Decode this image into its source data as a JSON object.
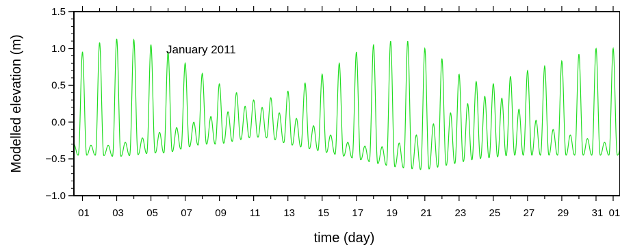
{
  "chart_data": {
    "type": "line",
    "ylabel": "Modelled elevation (m)",
    "xlabel": "time (day)",
    "annotation": "January 2011",
    "ylim": [
      -1.0,
      1.5
    ],
    "yticks": [
      -1.0,
      -0.5,
      0.0,
      0.5,
      1.0,
      1.5
    ],
    "ytick_labels": [
      "−1.0",
      "−0.5",
      "0.0",
      "0.5",
      "1.0",
      "1.5"
    ],
    "xlim_day": [
      0.5,
      32.4
    ],
    "xticks_day": [
      1,
      3,
      5,
      7,
      9,
      11,
      13,
      15,
      17,
      19,
      21,
      23,
      25,
      27,
      29,
      31,
      32
    ],
    "xtick_labels": [
      "01",
      "03",
      "05",
      "07",
      "09",
      "11",
      "13",
      "15",
      "17",
      "19",
      "21",
      "23",
      "25",
      "27",
      "29",
      "31",
      "01"
    ],
    "line_color": "#22dd22",
    "series": [
      {
        "high_tide_day": [
          1.0,
          2.0,
          3.0,
          4.0,
          5.0,
          6.0,
          7.0,
          8.0,
          9.0,
          10.0,
          11.0,
          12.0,
          13.0,
          14.0,
          15.0,
          16.0,
          17.0,
          18.0,
          19.0,
          20.0,
          21.0,
          22.0,
          23.0,
          24.0,
          25.0,
          26.0,
          27.0,
          28.0,
          29.0,
          30.0,
          31.0,
          32.0
        ],
        "high_tide_major": [
          0.95,
          1.08,
          1.13,
          1.12,
          1.05,
          0.95,
          0.8,
          0.66,
          0.52,
          0.4,
          0.3,
          0.33,
          0.42,
          0.53,
          0.65,
          0.8,
          0.95,
          1.05,
          1.1,
          1.1,
          1.0,
          0.86,
          0.65,
          0.55,
          0.52,
          0.62,
          0.7,
          0.76,
          0.83,
          0.92,
          1.0,
          1.0
        ],
        "high_tide_minor": [
          -0.3,
          -0.33,
          -0.3,
          -0.25,
          -0.18,
          -0.1,
          -0.05,
          0.05,
          0.1,
          0.18,
          0.25,
          0.15,
          0.1,
          0.0,
          -0.1,
          -0.25,
          -0.3,
          -0.35,
          -0.32,
          -0.25,
          -0.1,
          0.05,
          0.2,
          0.3,
          0.4,
          0.25,
          0.1,
          -0.05,
          -0.15,
          -0.2,
          -0.25,
          -0.3
        ],
        "low_tide": [
          -0.45,
          -0.45,
          -0.47,
          -0.45,
          -0.42,
          -0.42,
          -0.35,
          -0.3,
          -0.3,
          -0.25,
          -0.2,
          -0.22,
          -0.3,
          -0.35,
          -0.4,
          -0.45,
          -0.5,
          -0.55,
          -0.6,
          -0.63,
          -0.65,
          -0.6,
          -0.55,
          -0.5,
          -0.48,
          -0.45,
          -0.45,
          -0.45,
          -0.45,
          -0.45,
          -0.45,
          -0.45
        ]
      }
    ]
  }
}
